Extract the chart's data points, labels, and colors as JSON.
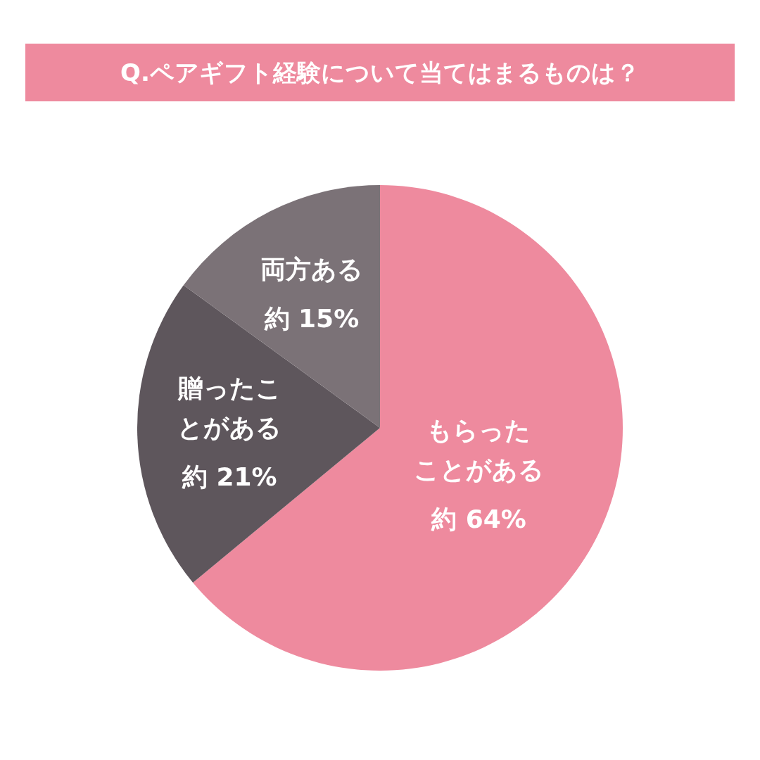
{
  "chart_data": {
    "type": "pie",
    "title": "Q.ペアギフト経験について当てはまるものは？",
    "categories": [
      "もらったことがある",
      "贈ったことがある",
      "両方ある"
    ],
    "values": [
      64,
      21,
      15
    ],
    "colors": [
      "#ee8a9e",
      "#5e565c",
      "#7b7277"
    ],
    "value_labels": [
      "約 64%",
      "約 21%",
      "約 15%"
    ]
  }
}
